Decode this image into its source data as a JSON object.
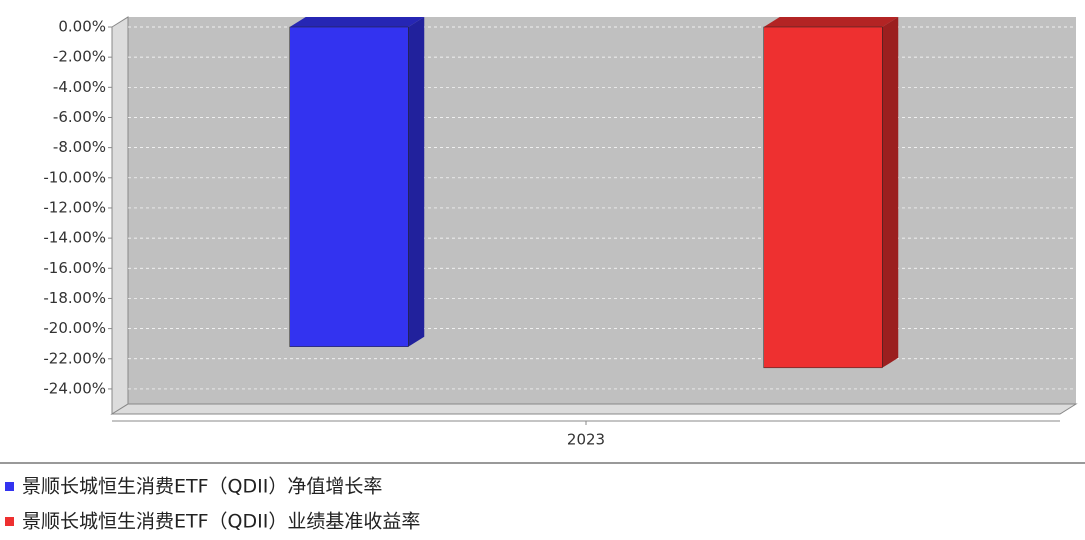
{
  "chart_data": {
    "type": "bar",
    "categories": [
      "2023"
    ],
    "series": [
      {
        "name": "景顺长城恒生消费ETF（QDII）净值增长率",
        "color": "#3333f0",
        "values": [
          -21.2
        ]
      },
      {
        "name": "景顺长城恒生消费ETF（QDII）业绩基准收益率",
        "color": "#ee3030",
        "values": [
          -22.6
        ]
      }
    ],
    "ylim": [
      -25,
      0
    ],
    "yticks": [
      {
        "value": 0,
        "label": "0.00%"
      },
      {
        "value": -2,
        "label": "-2.00%"
      },
      {
        "value": -4,
        "label": "-4.00%"
      },
      {
        "value": -6,
        "label": "-6.00%"
      },
      {
        "value": -8,
        "label": "-8.00%"
      },
      {
        "value": -10,
        "label": "-10.00%"
      },
      {
        "value": -12,
        "label": "-12.00%"
      },
      {
        "value": -14,
        "label": "-14.00%"
      },
      {
        "value": -16,
        "label": "-16.00%"
      },
      {
        "value": -18,
        "label": "-18.00%"
      },
      {
        "value": -20,
        "label": "-20.00%"
      },
      {
        "value": -22,
        "label": "-22.00%"
      },
      {
        "value": -24,
        "label": "-24.00%"
      }
    ],
    "grid": true
  }
}
